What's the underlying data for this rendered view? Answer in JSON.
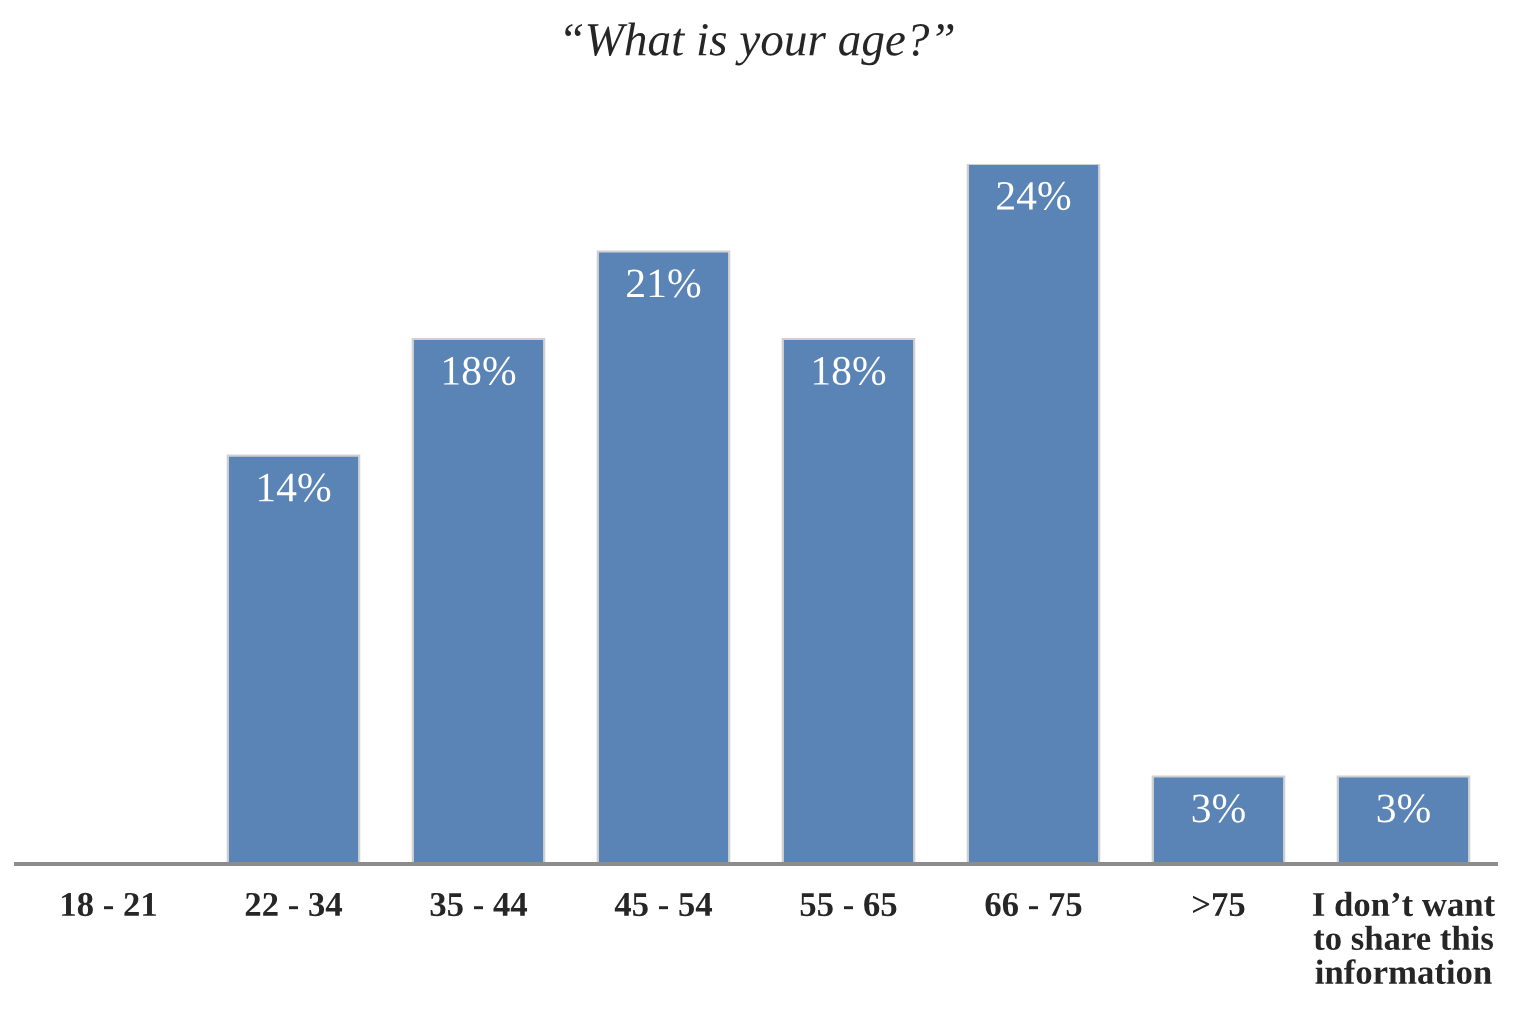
{
  "chart_data": {
    "type": "bar",
    "title": "“What is your age?”",
    "categories": [
      "18 - 21",
      "22 - 34",
      "35 - 44",
      "45 - 54",
      "55 - 65",
      "66 - 75",
      ">75",
      "I don’t want\nto share this\ninformation"
    ],
    "values": [
      null,
      14,
      18,
      21,
      18,
      24,
      3,
      3
    ],
    "color": "#5b84b6",
    "value_labels": [
      null,
      "14%",
      "18%",
      "21%",
      "18%",
      "24%",
      "3%",
      "3%"
    ],
    "tick_labels": "x"
  }
}
